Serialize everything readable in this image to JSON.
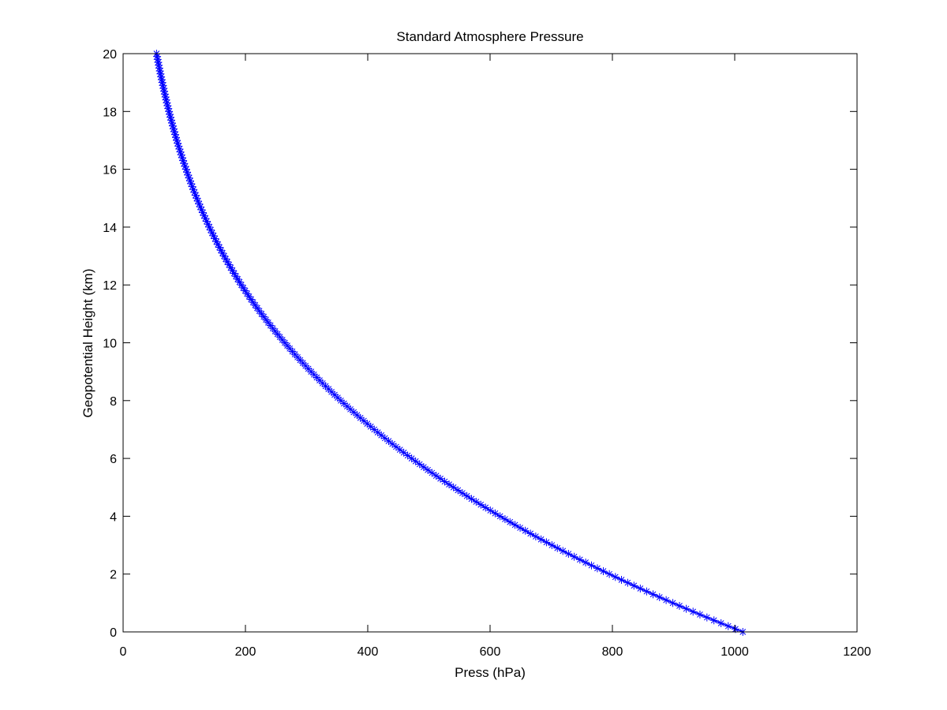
{
  "chart_data": {
    "type": "line",
    "title": "Standard Atmosphere Pressure",
    "xlabel": "Press (hPa)",
    "ylabel": "Geopotential Height (km)",
    "xlim": [
      0,
      1200
    ],
    "ylim": [
      0,
      20
    ],
    "xticks": [
      "0",
      "200",
      "400",
      "600",
      "800",
      "1000",
      "1200"
    ],
    "yticks": [
      "0",
      "2",
      "4",
      "6",
      "8",
      "10",
      "12",
      "14",
      "16",
      "18",
      "20"
    ],
    "grid": false,
    "legend": "none",
    "series": [
      {
        "marker": "asterisk",
        "color": "#0000ff",
        "x": [
          1013.25,
          954.6,
          898.8,
          845.6,
          795.0,
          746.9,
          701.1,
          657.6,
          616.4,
          577.2,
          540.2,
          505.0,
          471.8,
          440.2,
          410.6,
          382.5,
          356.0,
          331.0,
          307.4,
          285.2,
          264.4,
          244.8,
          226.3,
          209.2,
          193.3,
          178.7,
          165.1,
          152.6,
          141.0,
          130.3,
          120.4,
          111.3,
          102.9,
          95.1,
          87.8,
          81.2,
          75.0,
          69.3,
          64.1,
          59.2,
          54.7
        ],
        "y": [
          0,
          0.5,
          1,
          1.5,
          2,
          2.5,
          3,
          3.5,
          4,
          4.5,
          5,
          5.5,
          6,
          6.5,
          7,
          7.5,
          8,
          8.5,
          9,
          9.5,
          10,
          10.5,
          11,
          11.5,
          12,
          12.5,
          13,
          13.5,
          14,
          14.5,
          15,
          15.5,
          16,
          16.5,
          17,
          17.5,
          18,
          18.5,
          19,
          19.5,
          20
        ]
      }
    ]
  }
}
